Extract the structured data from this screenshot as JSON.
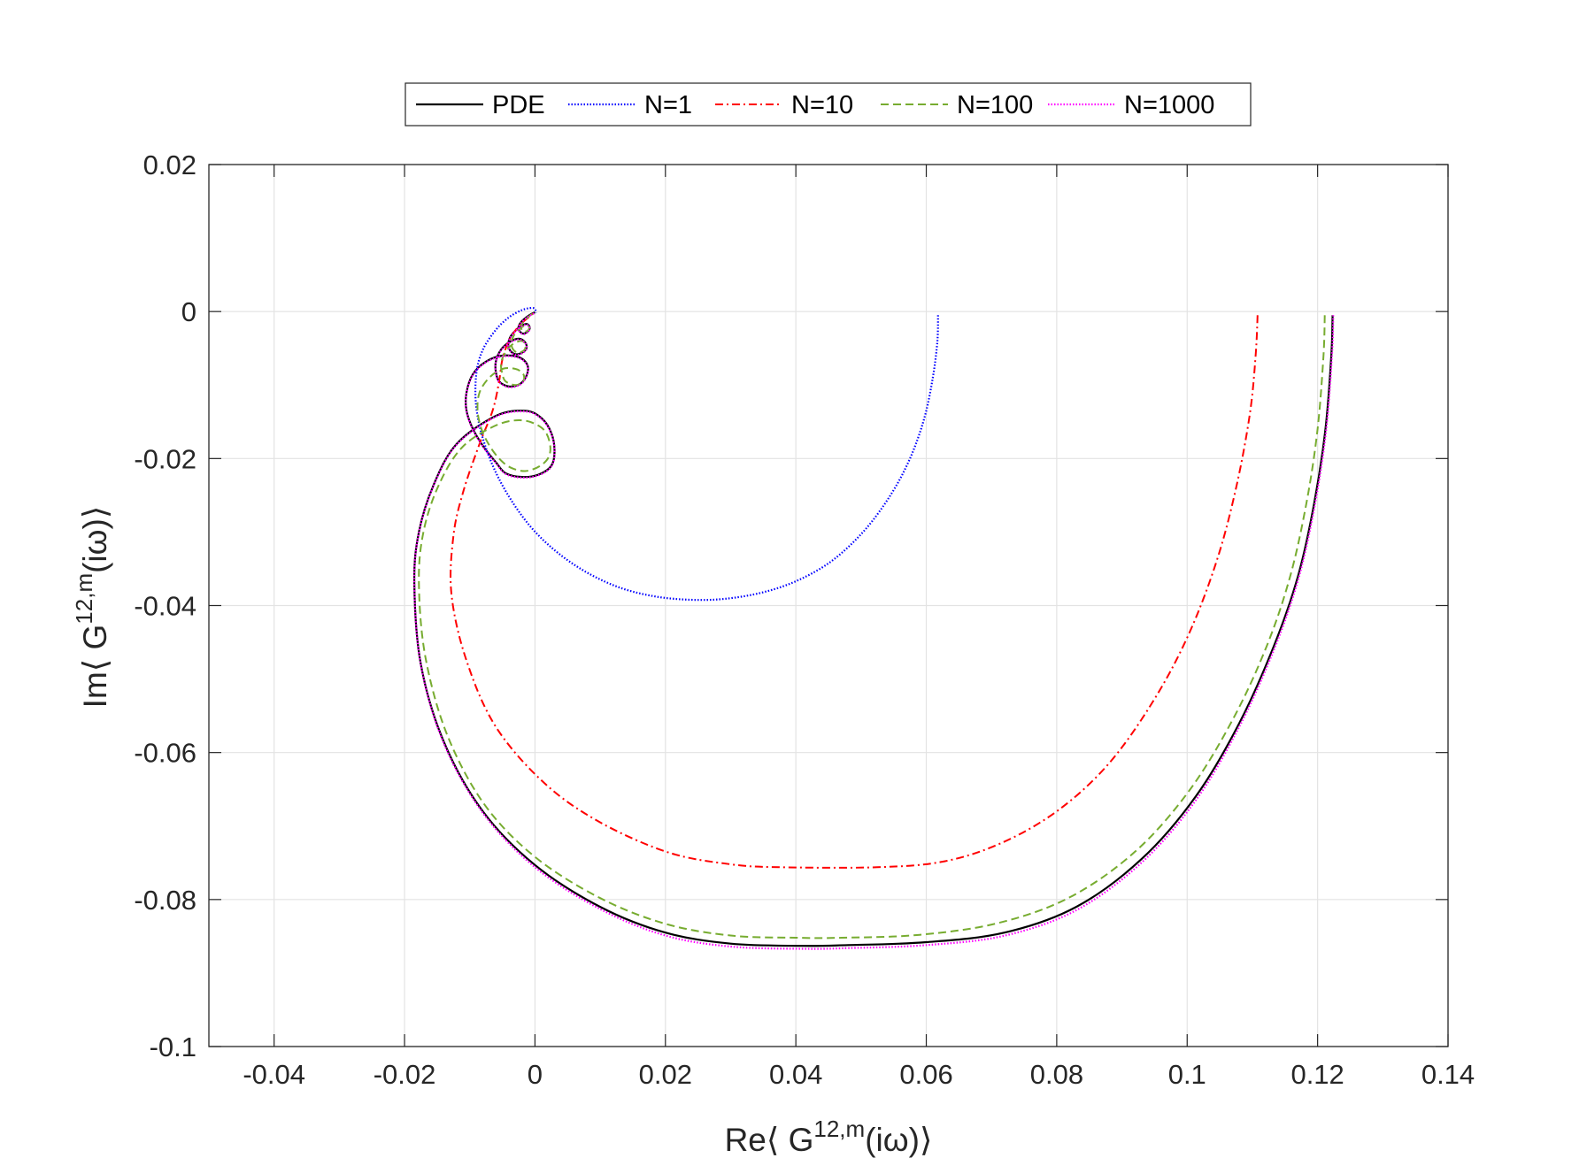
{
  "chart_data": {
    "type": "line",
    "title": "",
    "xlabel": {
      "prefix": "Re",
      "open": "⟨",
      "var": " G",
      "sup": "12,m",
      "arg": "(iω)",
      "close": "⟩"
    },
    "ylabel": {
      "prefix": "Im",
      "open": "⟨",
      "var": " G",
      "sup": "12,m",
      "arg": "(iω)",
      "close": "⟩"
    },
    "xlim": [
      -0.05,
      0.14
    ],
    "ylim": [
      -0.1,
      0.02
    ],
    "xticks": [
      -0.04,
      -0.02,
      0,
      0.02,
      0.04,
      0.06,
      0.08,
      0.1,
      0.12,
      0.14
    ],
    "xtick_labels": [
      "-0.04",
      "-0.02",
      "0",
      "0.02",
      "0.04",
      "0.06",
      "0.08",
      "0.1",
      "0.12",
      "0.14"
    ],
    "yticks": [
      -0.1,
      -0.08,
      -0.06,
      -0.04,
      -0.02,
      0,
      0.02
    ],
    "ytick_labels": [
      "-0.1",
      "-0.08",
      "-0.06",
      "-0.04",
      "-0.02",
      "0",
      "0.02"
    ],
    "grid": true,
    "legend_position": "top-outside, horizontal",
    "series": [
      {
        "name": "PDE",
        "color": "#000000",
        "dash": "solid",
        "points": [
          [
            0.1223,
            -0.0005
          ],
          [
            0.1221,
            -0.006
          ],
          [
            0.1212,
            -0.016
          ],
          [
            0.1195,
            -0.026
          ],
          [
            0.117,
            -0.036
          ],
          [
            0.1133,
            -0.0455
          ],
          [
            0.108,
            -0.056
          ],
          [
            0.1013,
            -0.066
          ],
          [
            0.093,
            -0.0745
          ],
          [
            0.083,
            -0.081
          ],
          [
            0.072,
            -0.0845
          ],
          [
            0.06,
            -0.0858
          ],
          [
            0.048,
            -0.0862
          ],
          [
            0.041,
            -0.0863
          ],
          [
            0.03,
            -0.086
          ],
          [
            0.02,
            -0.0845
          ],
          [
            0.01,
            -0.081
          ],
          [
            0.0,
            -0.0753
          ],
          [
            -0.008,
            -0.068
          ],
          [
            -0.014,
            -0.0585
          ],
          [
            -0.0175,
            -0.048
          ],
          [
            -0.0185,
            -0.037
          ],
          [
            -0.0178,
            -0.03
          ],
          [
            -0.0155,
            -0.0235
          ],
          [
            -0.012,
            -0.018
          ],
          [
            -0.006,
            -0.0142
          ],
          [
            -0.0015,
            -0.0135
          ],
          [
            0.001,
            -0.0145
          ],
          [
            0.0025,
            -0.0165
          ],
          [
            0.003,
            -0.019
          ],
          [
            0.0025,
            -0.021
          ],
          [
            0.0005,
            -0.0222
          ],
          [
            -0.002,
            -0.0225
          ],
          [
            -0.0045,
            -0.022
          ],
          [
            -0.006,
            -0.0205
          ],
          [
            -0.0078,
            -0.0185
          ],
          [
            -0.0095,
            -0.016
          ],
          [
            -0.0105,
            -0.0135
          ],
          [
            -0.0105,
            -0.011
          ],
          [
            -0.0095,
            -0.0085
          ],
          [
            -0.0075,
            -0.0068
          ],
          [
            -0.005,
            -0.006
          ],
          [
            -0.0025,
            -0.0062
          ],
          [
            -0.0012,
            -0.0072
          ],
          [
            -0.0012,
            -0.0085
          ],
          [
            -0.0022,
            -0.0098
          ],
          [
            -0.004,
            -0.0102
          ],
          [
            -0.0055,
            -0.0095
          ],
          [
            -0.006,
            -0.0082
          ],
          [
            -0.006,
            -0.0068
          ],
          [
            -0.0053,
            -0.0053
          ],
          [
            -0.004,
            -0.0042
          ],
          [
            -0.0025,
            -0.0037
          ],
          [
            -0.0015,
            -0.0042
          ],
          [
            -0.0013,
            -0.005
          ],
          [
            -0.002,
            -0.0056
          ],
          [
            -0.003,
            -0.0058
          ],
          [
            -0.0038,
            -0.0053
          ],
          [
            -0.0041,
            -0.0045
          ],
          [
            -0.0038,
            -0.0035
          ],
          [
            -0.003,
            -0.0026
          ],
          [
            -0.002,
            -0.0019
          ],
          [
            -0.0012,
            -0.0017
          ],
          [
            -0.0008,
            -0.0022
          ],
          [
            -0.0011,
            -0.0027
          ],
          [
            -0.0018,
            -0.003
          ],
          [
            -0.0024,
            -0.0026
          ],
          [
            -0.0025,
            -0.002
          ],
          [
            -0.002,
            -0.0013
          ],
          [
            -0.0012,
            -0.0007
          ],
          [
            -0.0005,
            -0.0003
          ],
          [
            0.0,
            -0.0001
          ]
        ]
      },
      {
        "name": "N=1",
        "color": "#0000ff",
        "dash": "dotted",
        "points": [
          [
            0.0618,
            -0.0005
          ],
          [
            0.0617,
            -0.004
          ],
          [
            0.061,
            -0.009
          ],
          [
            0.0597,
            -0.0145
          ],
          [
            0.0575,
            -0.02
          ],
          [
            0.0545,
            -0.025
          ],
          [
            0.0505,
            -0.0298
          ],
          [
            0.0457,
            -0.0338
          ],
          [
            0.0405,
            -0.0365
          ],
          [
            0.035,
            -0.0382
          ],
          [
            0.029,
            -0.0391
          ],
          [
            0.0235,
            -0.0392
          ],
          [
            0.018,
            -0.0387
          ],
          [
            0.0125,
            -0.0374
          ],
          [
            0.007,
            -0.035
          ],
          [
            0.002,
            -0.0317
          ],
          [
            -0.002,
            -0.0278
          ],
          [
            -0.0055,
            -0.0228
          ],
          [
            -0.0078,
            -0.0178
          ],
          [
            -0.009,
            -0.013
          ],
          [
            -0.009,
            -0.0085
          ],
          [
            -0.008,
            -0.0052
          ],
          [
            -0.006,
            -0.0025
          ],
          [
            -0.004,
            -0.0008
          ],
          [
            -0.002,
            0.0002
          ],
          [
            -0.0005,
            0.0005
          ],
          [
            0.0,
            0.0003
          ],
          [
            0.0002,
            -0.0002
          ]
        ]
      },
      {
        "name": "N=10",
        "color": "#ff0000",
        "dash": "dashdot",
        "points": [
          [
            0.1108,
            -0.0005
          ],
          [
            0.1105,
            -0.006
          ],
          [
            0.1096,
            -0.014
          ],
          [
            0.1075,
            -0.024
          ],
          [
            0.1045,
            -0.034
          ],
          [
            0.1002,
            -0.044
          ],
          [
            0.0948,
            -0.053
          ],
          [
            0.088,
            -0.0615
          ],
          [
            0.0803,
            -0.0678
          ],
          [
            0.0718,
            -0.0722
          ],
          [
            0.0628,
            -0.0748
          ],
          [
            0.0525,
            -0.0756
          ],
          [
            0.0375,
            -0.0756
          ],
          [
            0.03,
            -0.0752
          ],
          [
            0.0205,
            -0.0736
          ],
          [
            0.01,
            -0.0695
          ],
          [
            0.0015,
            -0.0642
          ],
          [
            -0.006,
            -0.0565
          ],
          [
            -0.0105,
            -0.0475
          ],
          [
            -0.0128,
            -0.0385
          ],
          [
            -0.0125,
            -0.0305
          ],
          [
            -0.011,
            -0.0245
          ],
          [
            -0.0085,
            -0.018
          ],
          [
            -0.0065,
            -0.0135
          ],
          [
            -0.0055,
            -0.0095
          ],
          [
            -0.005,
            -0.0065
          ],
          [
            -0.004,
            -0.004
          ],
          [
            -0.0025,
            -0.002
          ],
          [
            -0.001,
            -0.0008
          ],
          [
            -0.0002,
            -0.0002
          ]
        ]
      },
      {
        "name": "N=100",
        "color": "#77ac30",
        "dash": "dashed",
        "points": [
          [
            0.1211,
            -0.0005
          ],
          [
            0.1209,
            -0.006
          ],
          [
            0.12,
            -0.016
          ],
          [
            0.1183,
            -0.026
          ],
          [
            0.1158,
            -0.036
          ],
          [
            0.1122,
            -0.0455
          ],
          [
            0.107,
            -0.0555
          ],
          [
            0.1003,
            -0.0652
          ],
          [
            0.092,
            -0.0735
          ],
          [
            0.082,
            -0.0797
          ],
          [
            0.071,
            -0.0832
          ],
          [
            0.059,
            -0.0848
          ],
          [
            0.047,
            -0.0852
          ],
          [
            0.04,
            -0.0852
          ],
          [
            0.03,
            -0.0849
          ],
          [
            0.02,
            -0.0833
          ],
          [
            0.01,
            -0.0798
          ],
          [
            0.0,
            -0.0742
          ],
          [
            -0.0078,
            -0.067
          ],
          [
            -0.0135,
            -0.0575
          ],
          [
            -0.0168,
            -0.047
          ],
          [
            -0.0178,
            -0.037
          ],
          [
            -0.0171,
            -0.03
          ],
          [
            -0.0148,
            -0.0237
          ],
          [
            -0.0112,
            -0.0185
          ],
          [
            -0.006,
            -0.0155
          ],
          [
            -0.002,
            -0.0148
          ],
          [
            0.001,
            -0.0158
          ],
          [
            0.0022,
            -0.0176
          ],
          [
            0.0022,
            -0.0196
          ],
          [
            0.0008,
            -0.021
          ],
          [
            -0.0015,
            -0.0217
          ],
          [
            -0.0038,
            -0.0212
          ],
          [
            -0.0055,
            -0.02
          ],
          [
            -0.007,
            -0.0182
          ],
          [
            -0.0082,
            -0.016
          ],
          [
            -0.0088,
            -0.0135
          ],
          [
            -0.0085,
            -0.011
          ],
          [
            -0.007,
            -0.009
          ],
          [
            -0.005,
            -0.0078
          ],
          [
            -0.003,
            -0.0078
          ],
          [
            -0.0018,
            -0.0085
          ],
          [
            -0.0018,
            -0.0095
          ],
          [
            -0.003,
            -0.01
          ],
          [
            -0.0045,
            -0.0095
          ],
          [
            -0.005,
            -0.0085
          ],
          [
            -0.0052,
            -0.007
          ],
          [
            -0.0045,
            -0.0055
          ],
          [
            -0.0035,
            -0.0045
          ],
          [
            -0.0022,
            -0.004
          ],
          [
            -0.0015,
            -0.0044
          ],
          [
            -0.0016,
            -0.0052
          ],
          [
            -0.0026,
            -0.0056
          ],
          [
            -0.0034,
            -0.0051
          ],
          [
            -0.0036,
            -0.0042
          ],
          [
            -0.0032,
            -0.0032
          ],
          [
            -0.0024,
            -0.0024
          ],
          [
            -0.0015,
            -0.0019
          ],
          [
            -0.0009,
            -0.0021
          ],
          [
            -0.0011,
            -0.0026
          ],
          [
            -0.0018,
            -0.0027
          ],
          [
            -0.0021,
            -0.0022
          ],
          [
            -0.0018,
            -0.0014
          ],
          [
            -0.0011,
            -0.0008
          ],
          [
            -0.0004,
            -0.0003
          ],
          [
            0.0,
            -0.0001
          ]
        ]
      },
      {
        "name": "N=1000",
        "color": "#ff00ff",
        "dash": "dotted",
        "points": [
          [
            0.1224,
            -0.0005
          ],
          [
            0.1222,
            -0.006
          ],
          [
            0.1213,
            -0.0162
          ],
          [
            0.1196,
            -0.0262
          ],
          [
            0.1171,
            -0.0362
          ],
          [
            0.1134,
            -0.0458
          ],
          [
            0.1081,
            -0.0563
          ],
          [
            0.1014,
            -0.0664
          ],
          [
            0.0931,
            -0.0749
          ],
          [
            0.0831,
            -0.0814
          ],
          [
            0.0721,
            -0.0849
          ],
          [
            0.0601,
            -0.0862
          ],
          [
            0.0481,
            -0.0866
          ],
          [
            0.041,
            -0.0867
          ],
          [
            0.03,
            -0.0864
          ],
          [
            0.02,
            -0.0849
          ],
          [
            0.01,
            -0.0813
          ],
          [
            0.0,
            -0.0756
          ],
          [
            -0.008,
            -0.0682
          ],
          [
            -0.014,
            -0.0587
          ],
          [
            -0.0175,
            -0.0481
          ],
          [
            -0.0185,
            -0.0371
          ],
          [
            -0.0178,
            -0.0301
          ],
          [
            -0.0155,
            -0.0236
          ],
          [
            -0.012,
            -0.0181
          ],
          [
            -0.006,
            -0.0143
          ],
          [
            -0.0015,
            -0.0136
          ],
          [
            0.001,
            -0.0146
          ],
          [
            0.0025,
            -0.0166
          ],
          [
            0.003,
            -0.0191
          ],
          [
            0.0025,
            -0.0211
          ],
          [
            0.0005,
            -0.0223
          ],
          [
            -0.002,
            -0.0226
          ],
          [
            -0.0045,
            -0.0221
          ],
          [
            -0.006,
            -0.0206
          ],
          [
            -0.0078,
            -0.0186
          ],
          [
            -0.0095,
            -0.0161
          ],
          [
            -0.0105,
            -0.0136
          ],
          [
            -0.0105,
            -0.0111
          ],
          [
            -0.0095,
            -0.0086
          ],
          [
            -0.0075,
            -0.0069
          ],
          [
            -0.005,
            -0.0061
          ],
          [
            -0.0025,
            -0.0063
          ],
          [
            -0.0012,
            -0.0073
          ],
          [
            -0.0012,
            -0.0086
          ],
          [
            -0.0022,
            -0.0099
          ],
          [
            -0.004,
            -0.0103
          ],
          [
            -0.0055,
            -0.0096
          ],
          [
            -0.006,
            -0.0083
          ],
          [
            -0.006,
            -0.0069
          ],
          [
            -0.0053,
            -0.0054
          ],
          [
            -0.004,
            -0.0043
          ],
          [
            -0.0025,
            -0.0038
          ],
          [
            -0.0015,
            -0.0043
          ],
          [
            -0.0013,
            -0.0051
          ],
          [
            -0.002,
            -0.0057
          ],
          [
            -0.003,
            -0.0059
          ],
          [
            -0.0038,
            -0.0054
          ],
          [
            -0.0041,
            -0.0046
          ],
          [
            -0.0038,
            -0.0036
          ],
          [
            -0.003,
            -0.0027
          ],
          [
            -0.002,
            -0.002
          ],
          [
            -0.0012,
            -0.0018
          ],
          [
            -0.0008,
            -0.0023
          ],
          [
            -0.0011,
            -0.0028
          ],
          [
            -0.0018,
            -0.0031
          ],
          [
            -0.0024,
            -0.0027
          ],
          [
            -0.0025,
            -0.0021
          ],
          [
            -0.002,
            -0.0014
          ],
          [
            -0.0012,
            -0.0008
          ],
          [
            -0.0005,
            -0.0004
          ],
          [
            0.0,
            -0.0002
          ]
        ]
      }
    ]
  }
}
